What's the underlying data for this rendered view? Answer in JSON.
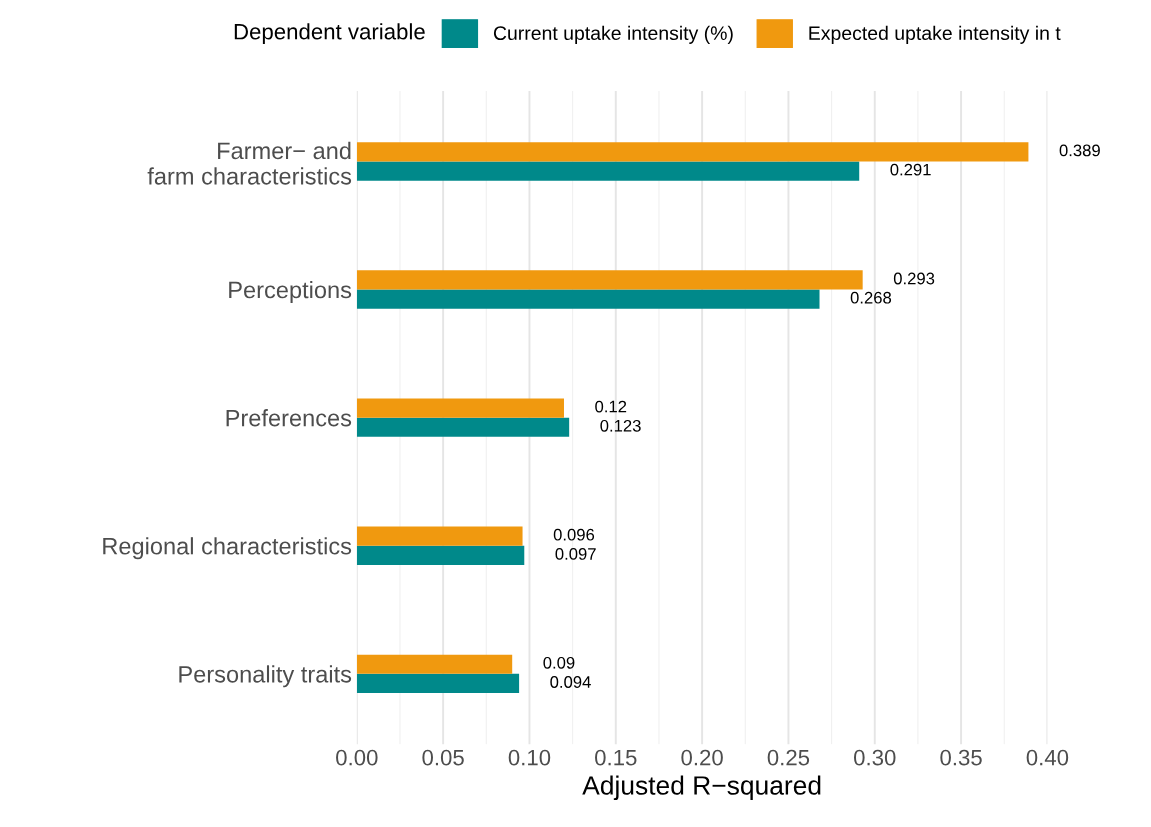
{
  "chart_data": {
    "type": "bar",
    "orientation": "horizontal",
    "xlabel": "Adjusted R−squared",
    "legend_title": "Dependent variable",
    "legend": "top",
    "categories": [
      "Farmer− and\nfarm characteristics",
      "Perceptions",
      "Preferences",
      "Regional characteristics",
      "Personality traits"
    ],
    "series": [
      {
        "name": "Current uptake intensity (%)",
        "color": "#00898a",
        "values": [
          0.291,
          0.268,
          0.123,
          0.097,
          0.094
        ],
        "value_labels": [
          "0.291",
          "0.268",
          "0.123",
          "0.097",
          "0.094"
        ]
      },
      {
        "name": "Expected uptake intensity in t",
        "color": "#f0990f",
        "values": [
          0.389,
          0.293,
          0.12,
          0.096,
          0.09
        ],
        "value_labels": [
          "0.389",
          "0.293",
          "0.12",
          "0.096",
          "0.09"
        ]
      }
    ],
    "xlim": [
      0,
      0.4
    ],
    "xticks": [
      {
        "value": 0,
        "label": "0.00"
      },
      {
        "value": 0.05,
        "label": "0.05"
      },
      {
        "value": 0.1,
        "label": "0.10"
      },
      {
        "value": 0.15,
        "label": "0.15"
      },
      {
        "value": 0.2,
        "label": "0.20"
      },
      {
        "value": 0.25,
        "label": "0.25"
      },
      {
        "value": 0.3,
        "label": "0.30"
      },
      {
        "value": 0.35,
        "label": "0.35"
      },
      {
        "value": 0.4,
        "label": "0.40"
      }
    ],
    "grid": "x"
  }
}
